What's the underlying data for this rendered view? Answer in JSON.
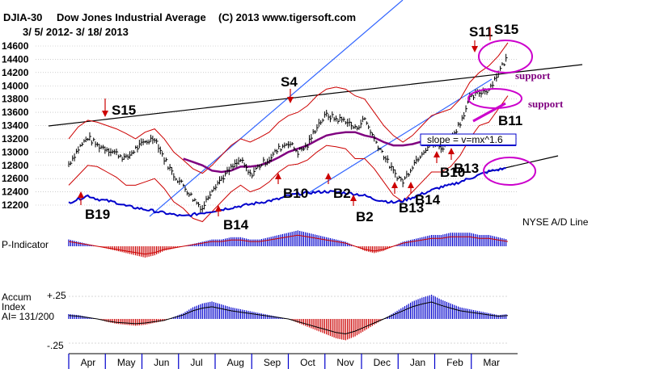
{
  "header": {
    "symbol": "DJIA-30",
    "name": "Dow Jones Industrial Average",
    "copyright": "(C) 2013 www.tigersoft.com",
    "date_range": "3/ 5/ 2012- 3/ 18/ 2013"
  },
  "colors": {
    "price": "#000000",
    "band": "#cc0000",
    "ma": "#800080",
    "ad_line": "#0000cc",
    "trend_blue": "#3366ff",
    "positive_bar": "#0000cc",
    "negative_bar": "#cc0000",
    "annotation": "#cc00cc",
    "grid": "#b0b0b0"
  },
  "chart_data": [
    {
      "type": "line",
      "title": "DJIA-30 Dow Jones Industrial Average",
      "ylim": [
        12200,
        14600
      ],
      "yticks": [
        "14600",
        "14400",
        "14200",
        "14000",
        "13800",
        "13600",
        "13400",
        "13200",
        "13000",
        "12800",
        "12600",
        "12400",
        "12200"
      ],
      "x_months": [
        "Apr",
        "May",
        "Jun",
        "Jul",
        "Aug",
        "Sep",
        "Oct",
        "Nov",
        "Dec",
        "Jan",
        "Feb",
        "Mar"
      ],
      "x": [
        0,
        0.25,
        0.5,
        0.75,
        1,
        1.25,
        1.5,
        1.75,
        2,
        2.25,
        2.5,
        2.75,
        3,
        3.25,
        3.5,
        3.75,
        4,
        4.25,
        4.5,
        4.75,
        5,
        5.25,
        5.5,
        5.75,
        6,
        6.25,
        6.5,
        6.75,
        7,
        7.25,
        7.5,
        7.75,
        8,
        8.25,
        8.5,
        8.75,
        9,
        9.25,
        9.5,
        9.75,
        10,
        10.25,
        10.5,
        10.75,
        11,
        11.25,
        11.5
      ],
      "series": [
        {
          "name": "DJIA",
          "values": [
            12820,
            13050,
            13220,
            13100,
            13050,
            12980,
            12900,
            13050,
            13150,
            13220,
            12900,
            12650,
            12500,
            12300,
            12150,
            12450,
            12600,
            12750,
            12880,
            12650,
            12800,
            12900,
            13050,
            13150,
            13000,
            13100,
            13400,
            13560,
            13500,
            13480,
            13350,
            13500,
            13200,
            12950,
            12700,
            12550,
            12800,
            13000,
            13150,
            13050,
            13200,
            13450,
            13800,
            13900,
            13950,
            14200,
            14450
          ]
        },
        {
          "name": "Upper band",
          "values": [
            13200,
            13380,
            13480,
            13450,
            13400,
            13350,
            13280,
            13200,
            13300,
            13350,
            13200,
            13000,
            12880,
            12750,
            12680,
            12800,
            12950,
            13100,
            13200,
            13150,
            13220,
            13300,
            13450,
            13550,
            13600,
            13700,
            13850,
            13950,
            13980,
            13950,
            13850,
            13800,
            13600,
            13400,
            13250,
            13150,
            13250,
            13400,
            13550,
            13600,
            13650,
            13800,
            14050,
            14200,
            14300,
            14450,
            14650
          ]
        },
        {
          "name": "Lower band",
          "values": [
            12500,
            12650,
            12800,
            12780,
            12700,
            12620,
            12500,
            12500,
            12550,
            12600,
            12450,
            12250,
            12150,
            12000,
            11950,
            12100,
            12250,
            12400,
            12500,
            12400,
            12450,
            12550,
            12700,
            12800,
            12820,
            12880,
            13000,
            13100,
            13080,
            13050,
            12900,
            12900,
            12750,
            12550,
            12350,
            12250,
            12400,
            12550,
            12700,
            12700,
            12780,
            12950,
            13200,
            13400,
            13450,
            13650,
            13850
          ]
        },
        {
          "name": "21-day MA",
          "values": [
            null,
            null,
            null,
            null,
            null,
            null,
            null,
            null,
            null,
            null,
            null,
            null,
            12900,
            12850,
            12800,
            12720,
            12700,
            12720,
            12780,
            12780,
            12800,
            12850,
            12920,
            13000,
            13050,
            13100,
            13180,
            13250,
            13280,
            13300,
            13300,
            13250,
            13220,
            13150,
            13100,
            13100,
            13120,
            13160,
            null,
            null,
            null,
            null,
            null,
            null,
            null,
            null,
            null
          ]
        }
      ]
    },
    {
      "type": "line",
      "title": "NYSE A/D Line",
      "series": [
        {
          "name": "NYSE A/D Line",
          "values": [
            0,
            1,
            2,
            1,
            0.5,
            0,
            -1,
            -1.5,
            -2,
            -2.5,
            -3,
            -3.5,
            -4,
            -3.5,
            -3,
            -2.5,
            -2,
            -1.5,
            -1,
            -0.5,
            0,
            0.5,
            1,
            2,
            2.5,
            2.8,
            3,
            3.2,
            3,
            2.8,
            2.5,
            2,
            1,
            0.5,
            0,
            0.5,
            1.5,
            2.5,
            3.5,
            4.5,
            5,
            6,
            7,
            8,
            9,
            9.5,
            10
          ]
        }
      ]
    },
    {
      "type": "bar",
      "title": "P-Indicator",
      "series": [
        {
          "name": "P-Indicator",
          "values": [
            3,
            2,
            1,
            0,
            -1,
            -2,
            -3,
            -4,
            -5,
            -4,
            -2,
            -1,
            0,
            1,
            2,
            3,
            3,
            4,
            4,
            3,
            3,
            4,
            5,
            6,
            7,
            6,
            5,
            4,
            3,
            2,
            0,
            -2,
            -3,
            -2,
            0,
            2,
            3,
            4,
            5,
            5,
            6,
            6,
            6,
            5,
            5,
            4,
            3
          ]
        }
      ]
    },
    {
      "type": "bar",
      "title": "Accum Index",
      "ylim": [
        -0.25,
        0.25
      ],
      "yticks": [
        "+.25",
        "-.25"
      ],
      "series": [
        {
          "name": "Accum Index",
          "values": [
            0.05,
            0.04,
            0.02,
            0.0,
            -0.03,
            -0.05,
            -0.06,
            -0.07,
            -0.06,
            -0.04,
            -0.02,
            0.02,
            0.06,
            0.12,
            0.16,
            0.18,
            0.15,
            0.12,
            0.1,
            0.08,
            0.06,
            0.04,
            0.02,
            0.0,
            -0.04,
            -0.08,
            -0.12,
            -0.16,
            -0.2,
            -0.22,
            -0.18,
            -0.12,
            -0.06,
            0.0,
            0.06,
            0.12,
            0.18,
            0.22,
            0.25,
            0.2,
            0.16,
            0.12,
            0.1,
            0.08,
            0.06,
            0.04,
            0.05
          ]
        }
      ]
    }
  ],
  "signals": [
    "S15",
    "S4",
    "S11",
    "S15",
    "B19",
    "B14",
    "B10",
    "B2",
    "B2",
    "B13",
    "B14",
    "B10",
    "B13",
    "B11"
  ],
  "annotations": {
    "support_upper": "support",
    "support_lower": "support",
    "slope_box": "slope = v=mx^1.6",
    "ad_label": "NYSE A/D Line",
    "p_indicator": "P-Indicator",
    "accum_title_1": "Accum",
    "accum_title_2": "Index",
    "ai_value": "AI= 131/200",
    "accum_top": "+.25",
    "accum_bottom": "-.25"
  }
}
